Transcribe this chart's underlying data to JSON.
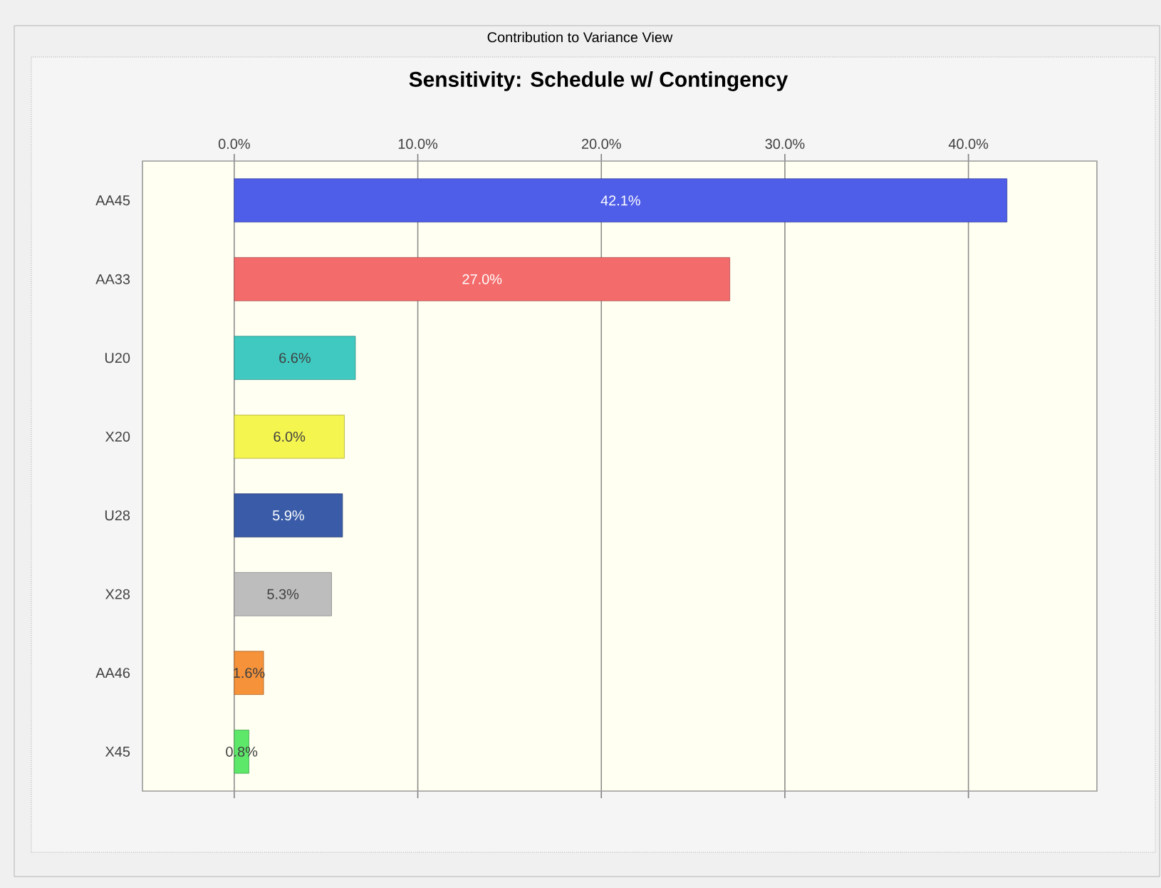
{
  "chart_data": {
    "type": "bar",
    "orientation": "horizontal",
    "subtitle": "Contribution to Variance View",
    "title": "Sensitivity: Schedule w/ Contingency",
    "categories": [
      "AA45",
      "AA33",
      "U20",
      "X20",
      "U28",
      "X28",
      "AA46",
      "X45"
    ],
    "values": [
      42.1,
      27.0,
      6.6,
      6.0,
      5.9,
      5.3,
      1.6,
      0.8
    ],
    "value_labels": [
      "42.1%",
      "27.0%",
      "6.6%",
      "6.0%",
      "5.9%",
      "5.3%",
      "1.6%",
      "0.8%"
    ],
    "colors": [
      "#4f5ee8",
      "#f46b6b",
      "#3fc9c0",
      "#f5f550",
      "#3a5ca8",
      "#bdbdbd",
      "#f5923a",
      "#5ee86a"
    ],
    "xlim": [
      -5,
      47
    ],
    "xticks": [
      {
        "value": 0,
        "label": "0.0%"
      },
      {
        "value": 10,
        "label": "10.0%"
      },
      {
        "value": 20,
        "label": "20.0%"
      },
      {
        "value": 30,
        "label": "30.0%"
      },
      {
        "value": 40,
        "label": "40.0%"
      }
    ],
    "grid": "x"
  }
}
